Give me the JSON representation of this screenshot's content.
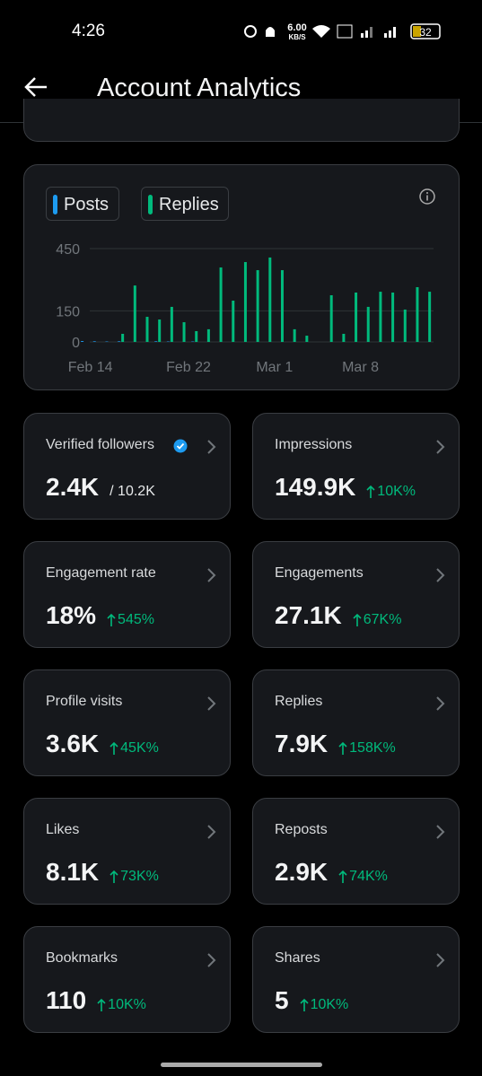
{
  "status_bar": {
    "time": "4:26",
    "speed": "6.00",
    "speed_unit": "KB/S",
    "battery": "32"
  },
  "header": {
    "title": "Account Analytics"
  },
  "chart_data": {
    "type": "bar",
    "categories": [
      "Feb 14",
      null,
      null,
      null,
      null,
      null,
      null,
      null,
      "Feb 22",
      null,
      null,
      null,
      null,
      null,
      null,
      "Mar 1",
      null,
      null,
      null,
      null,
      null,
      null,
      "Mar 8",
      null,
      null,
      null,
      null,
      null,
      null
    ],
    "series": [
      {
        "name": "Posts",
        "color": "#1d9bf0",
        "values": [
          4,
          3,
          2,
          3,
          0,
          0,
          3,
          2,
          0,
          2,
          0,
          0,
          0,
          0,
          0,
          0,
          0,
          0,
          0,
          0,
          0,
          0,
          0,
          0,
          0,
          0,
          0,
          0,
          0
        ]
      },
      {
        "name": "Replies",
        "color": "#00ba7c",
        "values": [
          0,
          0,
          0,
          39,
          272,
          121,
          108,
          169,
          95,
          52,
          61,
          359,
          199,
          385,
          346,
          407,
          346,
          61,
          30,
          0,
          225,
          39,
          238,
          169,
          242,
          238,
          156,
          264,
          242
        ]
      }
    ],
    "ylim": [
      0,
      450
    ],
    "yticks": [
      0,
      150,
      450
    ],
    "grid": true
  },
  "metrics": [
    {
      "label": "Verified followers",
      "value": "2.4K",
      "total": "/ 10.2K"
    },
    {
      "label": "Impressions",
      "value": "149.9K",
      "change": "10K%"
    },
    {
      "label": "Engagement rate",
      "value": "18%",
      "change": "545%"
    },
    {
      "label": "Engagements",
      "value": "27.1K",
      "change": "67K%"
    },
    {
      "label": "Profile visits",
      "value": "3.6K",
      "change": "45K%"
    },
    {
      "label": "Replies",
      "value": "7.9K",
      "change": "158K%"
    },
    {
      "label": "Likes",
      "value": "8.1K",
      "change": "73K%"
    },
    {
      "label": "Reposts",
      "value": "2.9K",
      "change": "74K%"
    },
    {
      "label": "Bookmarks",
      "value": "110",
      "change": "10K%"
    },
    {
      "label": "Shares",
      "value": "5",
      "change": "10K%"
    }
  ]
}
